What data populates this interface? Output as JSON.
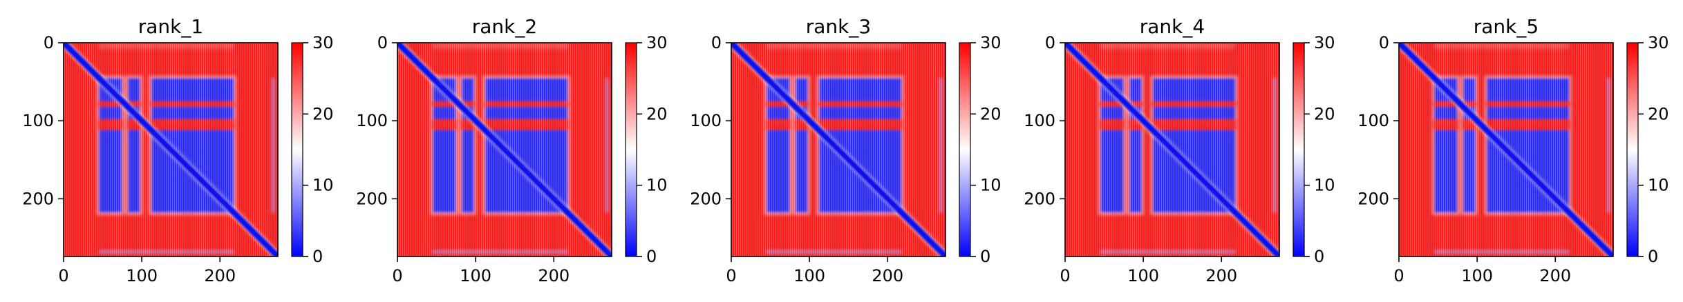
{
  "chart_data": {
    "type": "heatmap",
    "colormap": [
      "#0000ff",
      "#ffffff",
      "#ff0000"
    ],
    "colorbar": {
      "range": [
        0,
        30
      ],
      "ticks": [
        0,
        10,
        20,
        30
      ]
    },
    "axes": {
      "extent": [
        0,
        274
      ],
      "xticks": [
        0,
        100,
        200
      ],
      "yticks": [
        0,
        100,
        200
      ],
      "y_inverted": true
    },
    "structure": {
      "blue_blocks": [
        [
          45,
          75
        ],
        [
          82,
          98
        ],
        [
          112,
          218
        ]
      ],
      "gap_rows_blue": [
        [
          0,
          45
        ]
      ],
      "edge_feature_position": 270
    },
    "panels": [
      {
        "title": "rank_1"
      },
      {
        "title": "rank_2"
      },
      {
        "title": "rank_3"
      },
      {
        "title": "rank_4"
      },
      {
        "title": "rank_5"
      }
    ]
  }
}
